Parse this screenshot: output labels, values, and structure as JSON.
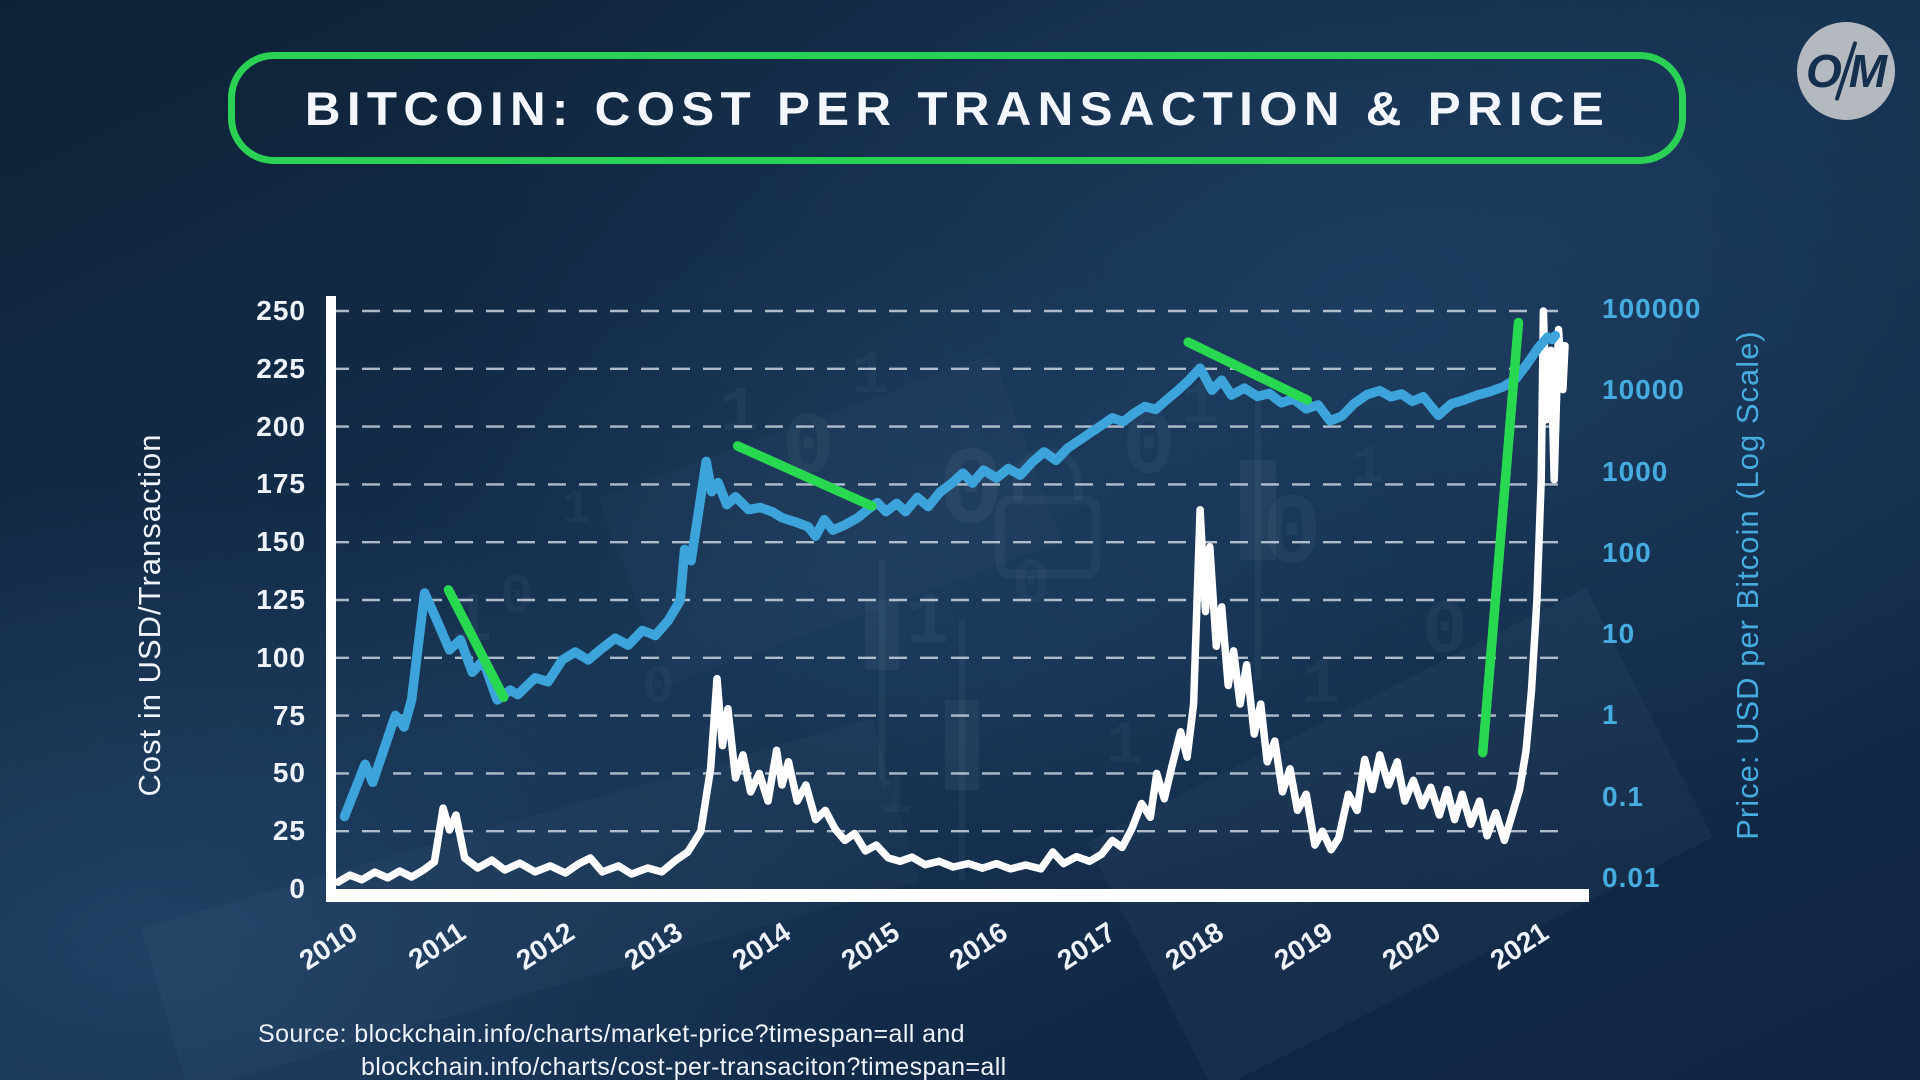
{
  "header": {
    "title": "BITCOIN: COST PER TRANSACTION & PRICE",
    "logo": {
      "letter_o": "O",
      "letter_m": "M"
    }
  },
  "footer": {
    "source_line1": "Source: blockchain.info/charts/market-price?timespan=all and",
    "source_line2": "blockchain.info/charts/cost-per-transaciton?timespan=all"
  },
  "chart_data": {
    "type": "line",
    "title": "BITCOIN: COST PER TRANSACTION & PRICE",
    "grid": "horizontal dashed lines at left-axis ticks",
    "legend": "none",
    "x_axis": {
      "ticks": [
        2010,
        2011,
        2012,
        2013,
        2014,
        2015,
        2016,
        2017,
        2018,
        2019,
        2020,
        2021
      ],
      "range": [
        2010,
        2021.5
      ]
    },
    "left_axis": {
      "label": "Cost in USD/Transaction",
      "scale": "linear",
      "range": [
        0,
        250
      ],
      "ticks": [
        0,
        25,
        50,
        75,
        100,
        125,
        150,
        175,
        200,
        225,
        250
      ]
    },
    "right_axis": {
      "label": "Price: USD per Bitcoin (Log Scale)",
      "scale": "log",
      "range": [
        0.01,
        100000
      ],
      "ticks": [
        "0.01",
        "0.1",
        "1",
        "10",
        "100",
        "1000",
        "10000",
        "100000"
      ]
    },
    "colors": {
      "cost_line": "#ffffff",
      "price_line": "#3ca4da",
      "annotation_green": "#28d850",
      "grid": "#d9e2ec",
      "title_border_green": "#2bd155",
      "tick_left": "#eef3f9",
      "tick_right": "#46abdf"
    },
    "series": [
      {
        "name": "Cost in USD/Transaction",
        "axis": "left",
        "color": "#ffffff",
        "points": [
          [
            2010.0,
            3
          ],
          [
            2010.11,
            6
          ],
          [
            2010.22,
            4
          ],
          [
            2010.34,
            7.3
          ],
          [
            2010.46,
            4.8
          ],
          [
            2010.57,
            7.8
          ],
          [
            2010.68,
            5.2
          ],
          [
            2010.79,
            8.2
          ],
          [
            2010.89,
            11.7
          ],
          [
            2010.97,
            35
          ],
          [
            2011.03,
            25.5
          ],
          [
            2011.09,
            32
          ],
          [
            2011.17,
            13.4
          ],
          [
            2011.29,
            9.1
          ],
          [
            2011.42,
            12.5
          ],
          [
            2011.54,
            8.2
          ],
          [
            2011.68,
            11.2
          ],
          [
            2011.82,
            7.4
          ],
          [
            2011.96,
            10
          ],
          [
            2012.1,
            6.9
          ],
          [
            2012.22,
            10.8
          ],
          [
            2012.33,
            13.4
          ],
          [
            2012.44,
            7.4
          ],
          [
            2012.59,
            10
          ],
          [
            2012.71,
            6.5
          ],
          [
            2012.86,
            9.1
          ],
          [
            2012.99,
            7.4
          ],
          [
            2013.12,
            12.5
          ],
          [
            2013.23,
            16
          ],
          [
            2013.35,
            25
          ],
          [
            2013.44,
            52
          ],
          [
            2013.5,
            91
          ],
          [
            2013.55,
            62
          ],
          [
            2013.6,
            78
          ],
          [
            2013.67,
            48
          ],
          [
            2013.74,
            58
          ],
          [
            2013.81,
            42
          ],
          [
            2013.89,
            50
          ],
          [
            2013.97,
            38
          ],
          [
            2014.05,
            60
          ],
          [
            2014.1,
            45
          ],
          [
            2014.16,
            55
          ],
          [
            2014.24,
            38
          ],
          [
            2014.32,
            45
          ],
          [
            2014.41,
            30
          ],
          [
            2014.5,
            34
          ],
          [
            2014.59,
            26
          ],
          [
            2014.68,
            21
          ],
          [
            2014.77,
            24
          ],
          [
            2014.87,
            16.5
          ],
          [
            2014.97,
            19
          ],
          [
            2015.08,
            13.5
          ],
          [
            2015.19,
            12
          ],
          [
            2015.3,
            13.8
          ],
          [
            2015.42,
            10.5
          ],
          [
            2015.55,
            12
          ],
          [
            2015.68,
            9.5
          ],
          [
            2015.82,
            11
          ],
          [
            2015.95,
            9
          ],
          [
            2016.08,
            11
          ],
          [
            2016.21,
            8.7
          ],
          [
            2016.35,
            10.4
          ],
          [
            2016.49,
            8.7
          ],
          [
            2016.6,
            16
          ],
          [
            2016.7,
            11
          ],
          [
            2016.82,
            14
          ],
          [
            2016.94,
            12
          ],
          [
            2017.05,
            15
          ],
          [
            2017.15,
            21
          ],
          [
            2017.24,
            18
          ],
          [
            2017.33,
            26
          ],
          [
            2017.42,
            37
          ],
          [
            2017.5,
            31
          ],
          [
            2017.56,
            50
          ],
          [
            2017.63,
            39
          ],
          [
            2017.7,
            53
          ],
          [
            2017.78,
            68
          ],
          [
            2017.84,
            57
          ],
          [
            2017.9,
            80
          ],
          [
            2017.96,
            164
          ],
          [
            2018.01,
            120
          ],
          [
            2018.05,
            148
          ],
          [
            2018.11,
            105
          ],
          [
            2018.16,
            122
          ],
          [
            2018.22,
            88
          ],
          [
            2018.27,
            103
          ],
          [
            2018.33,
            80
          ],
          [
            2018.39,
            97
          ],
          [
            2018.46,
            67
          ],
          [
            2018.52,
            80
          ],
          [
            2018.58,
            55
          ],
          [
            2018.65,
            64
          ],
          [
            2018.72,
            42
          ],
          [
            2018.79,
            52
          ],
          [
            2018.86,
            34
          ],
          [
            2018.94,
            41
          ],
          [
            2019.02,
            19
          ],
          [
            2019.09,
            25
          ],
          [
            2019.17,
            17
          ],
          [
            2019.24,
            22
          ],
          [
            2019.33,
            41
          ],
          [
            2019.41,
            34
          ],
          [
            2019.48,
            56
          ],
          [
            2019.55,
            43
          ],
          [
            2019.62,
            58
          ],
          [
            2019.7,
            45
          ],
          [
            2019.78,
            55
          ],
          [
            2019.85,
            38
          ],
          [
            2019.93,
            47
          ],
          [
            2020.01,
            36
          ],
          [
            2020.09,
            44
          ],
          [
            2020.17,
            32
          ],
          [
            2020.24,
            43
          ],
          [
            2020.31,
            30
          ],
          [
            2020.38,
            41
          ],
          [
            2020.46,
            28
          ],
          [
            2020.54,
            38
          ],
          [
            2020.61,
            23
          ],
          [
            2020.69,
            33
          ],
          [
            2020.77,
            21
          ],
          [
            2020.84,
            32
          ],
          [
            2020.91,
            43
          ],
          [
            2020.97,
            60
          ],
          [
            2021.02,
            86
          ],
          [
            2021.07,
            125
          ],
          [
            2021.11,
            177
          ],
          [
            2021.13,
            250
          ],
          [
            2021.16,
            203
          ],
          [
            2021.2,
            233
          ],
          [
            2021.23,
            177
          ],
          [
            2021.27,
            242
          ],
          [
            2021.31,
            216
          ],
          [
            2021.33,
            235
          ]
        ]
      },
      {
        "name": "Price: USD per Bitcoin",
        "axis": "right",
        "color": "#3ca4da",
        "points": [
          [
            2010.06,
            0.057
          ],
          [
            2010.25,
            0.25
          ],
          [
            2010.32,
            0.15
          ],
          [
            2010.53,
            1.0
          ],
          [
            2010.61,
            0.72
          ],
          [
            2010.68,
            1.55
          ],
          [
            2010.8,
            32
          ],
          [
            2010.91,
            15
          ],
          [
            2011.03,
            6.4
          ],
          [
            2011.13,
            8.5
          ],
          [
            2011.24,
            3.4
          ],
          [
            2011.34,
            4.7
          ],
          [
            2011.47,
            1.55
          ],
          [
            2011.59,
            2.05
          ],
          [
            2011.66,
            1.8
          ],
          [
            2011.82,
            2.9
          ],
          [
            2011.94,
            2.6
          ],
          [
            2012.07,
            4.8
          ],
          [
            2012.19,
            6.0
          ],
          [
            2012.31,
            4.8
          ],
          [
            2012.42,
            6.4
          ],
          [
            2012.56,
            8.9
          ],
          [
            2012.68,
            7.3
          ],
          [
            2012.81,
            11.1
          ],
          [
            2012.93,
            9.6
          ],
          [
            2013.05,
            14.7
          ],
          [
            2013.16,
            26
          ],
          [
            2013.2,
            110
          ],
          [
            2013.26,
            80
          ],
          [
            2013.4,
            1330
          ],
          [
            2013.45,
            565
          ],
          [
            2013.51,
            730
          ],
          [
            2013.59,
            390
          ],
          [
            2013.67,
            490
          ],
          [
            2013.79,
            340
          ],
          [
            2013.9,
            360
          ],
          [
            2014.01,
            320
          ],
          [
            2014.1,
            270
          ],
          [
            2014.22,
            240
          ],
          [
            2014.34,
            210
          ],
          [
            2014.41,
            160
          ],
          [
            2014.49,
            255
          ],
          [
            2014.57,
            190
          ],
          [
            2014.68,
            220
          ],
          [
            2014.8,
            270
          ],
          [
            2014.89,
            340
          ],
          [
            2014.98,
            415
          ],
          [
            2015.06,
            320
          ],
          [
            2015.16,
            405
          ],
          [
            2015.24,
            320
          ],
          [
            2015.35,
            480
          ],
          [
            2015.45,
            370
          ],
          [
            2015.56,
            560
          ],
          [
            2015.67,
            720
          ],
          [
            2015.77,
            955
          ],
          [
            2015.86,
            720
          ],
          [
            2015.96,
            1040
          ],
          [
            2016.08,
            830
          ],
          [
            2016.19,
            1090
          ],
          [
            2016.3,
            900
          ],
          [
            2016.41,
            1300
          ],
          [
            2016.52,
            1740
          ],
          [
            2016.63,
            1370
          ],
          [
            2016.74,
            1950
          ],
          [
            2016.85,
            2450
          ],
          [
            2016.96,
            3080
          ],
          [
            2017.07,
            3860
          ],
          [
            2017.15,
            4570
          ],
          [
            2017.25,
            4100
          ],
          [
            2017.35,
            5200
          ],
          [
            2017.45,
            6300
          ],
          [
            2017.55,
            5800
          ],
          [
            2017.65,
            7600
          ],
          [
            2017.75,
            9800
          ],
          [
            2017.85,
            13000
          ],
          [
            2017.96,
            18700
          ],
          [
            2018.07,
            10000
          ],
          [
            2018.16,
            13300
          ],
          [
            2018.25,
            8700
          ],
          [
            2018.37,
            10600
          ],
          [
            2018.49,
            8400
          ],
          [
            2018.6,
            9100
          ],
          [
            2018.71,
            7000
          ],
          [
            2018.82,
            7800
          ],
          [
            2018.94,
            5900
          ],
          [
            2019.05,
            6600
          ],
          [
            2019.16,
            4200
          ],
          [
            2019.27,
            4800
          ],
          [
            2019.38,
            6800
          ],
          [
            2019.5,
            8800
          ],
          [
            2019.62,
            9900
          ],
          [
            2019.72,
            8300
          ],
          [
            2019.82,
            9000
          ],
          [
            2019.92,
            7300
          ],
          [
            2020.02,
            8300
          ],
          [
            2020.16,
            4900
          ],
          [
            2020.28,
            6800
          ],
          [
            2020.4,
            7600
          ],
          [
            2020.52,
            8700
          ],
          [
            2020.64,
            9600
          ],
          [
            2020.76,
            11000
          ],
          [
            2020.88,
            14000
          ],
          [
            2020.98,
            21000
          ],
          [
            2021.08,
            33000
          ],
          [
            2021.17,
            45000
          ],
          [
            2021.21,
            42000
          ],
          [
            2021.24,
            47000
          ]
        ]
      }
    ],
    "annotations": [
      {
        "name": "downtrend-2011",
        "axis": "right",
        "color": "#28d850",
        "from": [
          2011.02,
          35
        ],
        "to": [
          2011.53,
          1.67
        ]
      },
      {
        "name": "downtrend-2014",
        "axis": "right",
        "color": "#28d850",
        "from": [
          2013.69,
          2060
        ],
        "to": [
          2014.93,
          376
        ]
      },
      {
        "name": "downtrend-2018",
        "axis": "right",
        "color": "#28d850",
        "from": [
          2017.85,
          39000
        ],
        "to": [
          2018.95,
          7570
        ]
      },
      {
        "name": "uptrend-2021",
        "axis": "left",
        "color": "#28d850",
        "from": [
          2020.57,
          59
        ],
        "to": [
          2020.9,
          245
        ]
      }
    ]
  }
}
